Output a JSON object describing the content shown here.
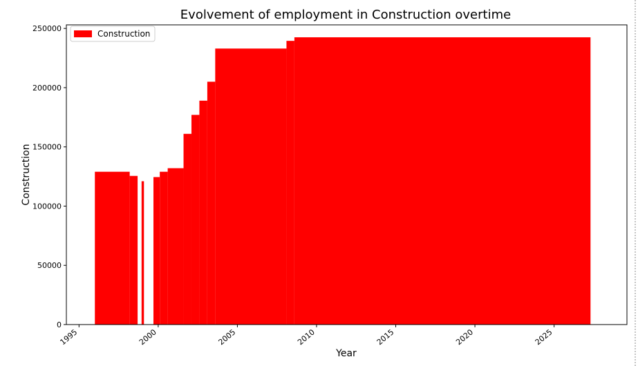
{
  "chart_data": {
    "type": "bar",
    "title": "Evolvement of employment in Construction overtime",
    "xlabel": "Year",
    "ylabel": "Construction",
    "xlim": [
      1994.2,
      2029.6
    ],
    "ylim": [
      0,
      253000
    ],
    "x_ticks": [
      1995,
      2000,
      2005,
      2010,
      2015,
      2020,
      2025
    ],
    "y_ticks": [
      0,
      50000,
      100000,
      150000,
      200000,
      250000
    ],
    "x_tick_labels": [
      "1995",
      "2000",
      "2005",
      "2010",
      "2015",
      "2020",
      "2025"
    ],
    "y_tick_labels": [
      "0",
      "50000",
      "100000",
      "150000",
      "200000",
      "250000"
    ],
    "grid": false,
    "legend": {
      "entries": [
        "Construction"
      ],
      "placement": "top-left"
    },
    "series": [
      {
        "name": "Construction",
        "color": "#ff0000",
        "steps": [
          {
            "x0": 1996.0,
            "x1": 1998.2,
            "y": 129000
          },
          {
            "x0": 1998.2,
            "x1": 1998.7,
            "y": 125500
          },
          {
            "x0": 1998.95,
            "x1": 1999.1,
            "y": 121000
          },
          {
            "x0": 1999.7,
            "x1": 2000.1,
            "y": 124500
          },
          {
            "x0": 2000.1,
            "x1": 2000.6,
            "y": 129000
          },
          {
            "x0": 2000.6,
            "x1": 2001.6,
            "y": 132000
          },
          {
            "x0": 2001.6,
            "x1": 2002.1,
            "y": 161000
          },
          {
            "x0": 2002.1,
            "x1": 2002.6,
            "y": 177000
          },
          {
            "x0": 2002.6,
            "x1": 2003.1,
            "y": 189000
          },
          {
            "x0": 2003.1,
            "x1": 2003.6,
            "y": 205000
          },
          {
            "x0": 2003.6,
            "x1": 2008.1,
            "y": 233000
          },
          {
            "x0": 2008.1,
            "x1": 2008.6,
            "y": 239500
          },
          {
            "x0": 2008.6,
            "x1": 2027.3,
            "y": 242500
          }
        ]
      }
    ]
  }
}
